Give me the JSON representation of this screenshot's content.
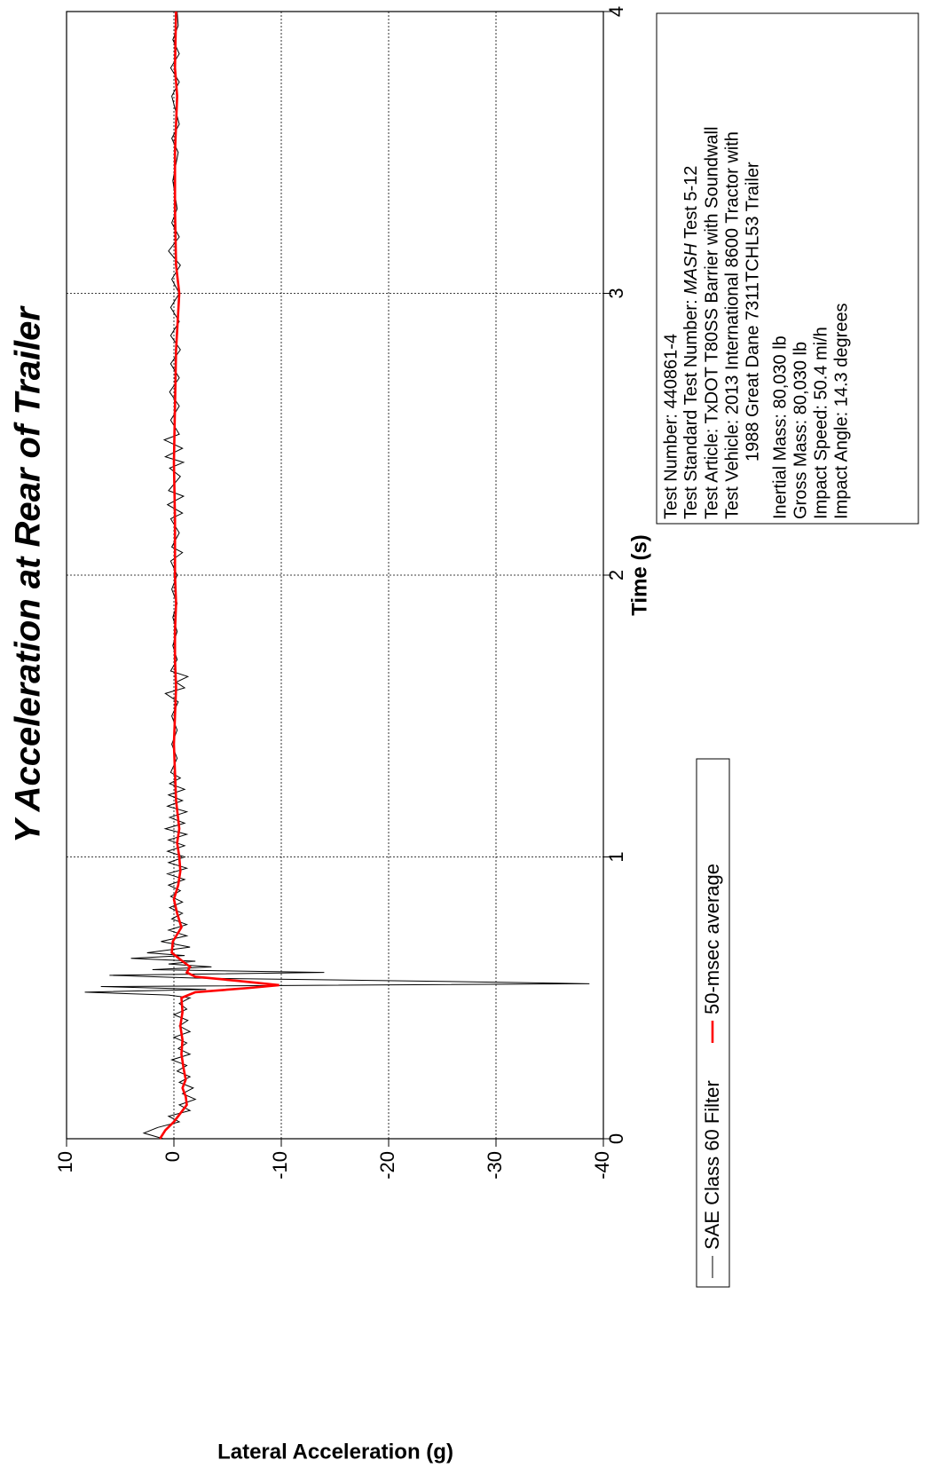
{
  "chart_data": {
    "type": "line",
    "title": "Y Acceleration at Rear of Trailer",
    "x_label": "Time (s)",
    "y_label": "Lateral Acceleration (g)",
    "xlim": [
      0,
      4
    ],
    "xticks": [
      0,
      1,
      2,
      3,
      4
    ],
    "ylim": [
      -40,
      10
    ],
    "yticks": [
      10,
      0,
      -10,
      -20,
      -30,
      -40
    ],
    "grid": true,
    "series": [
      {
        "name": "SAE Class 60 Filter",
        "color": "#000000",
        "x": [
          0,
          0.02,
          0.04,
          0.06,
          0.08,
          0.1,
          0.12,
          0.14,
          0.16,
          0.18,
          0.2,
          0.22,
          0.24,
          0.26,
          0.28,
          0.3,
          0.32,
          0.34,
          0.36,
          0.38,
          0.4,
          0.42,
          0.44,
          0.46,
          0.48,
          0.5,
          0.51,
          0.52,
          0.53,
          0.54,
          0.55,
          0.56,
          0.57,
          0.58,
          0.59,
          0.6,
          0.61,
          0.62,
          0.63,
          0.64,
          0.65,
          0.66,
          0.68,
          0.7,
          0.72,
          0.74,
          0.76,
          0.78,
          0.8,
          0.82,
          0.84,
          0.86,
          0.88,
          0.9,
          0.92,
          0.94,
          0.96,
          0.98,
          1.0,
          1.02,
          1.04,
          1.06,
          1.08,
          1.1,
          1.12,
          1.14,
          1.16,
          1.18,
          1.2,
          1.22,
          1.24,
          1.26,
          1.28,
          1.3,
          1.35,
          1.4,
          1.45,
          1.5,
          1.55,
          1.58,
          1.6,
          1.62,
          1.64,
          1.66,
          1.7,
          1.75,
          1.8,
          1.85,
          1.9,
          1.95,
          2.0,
          2.05,
          2.08,
          2.1,
          2.15,
          2.2,
          2.22,
          2.25,
          2.28,
          2.3,
          2.35,
          2.38,
          2.4,
          2.42,
          2.45,
          2.48,
          2.5,
          2.55,
          2.6,
          2.65,
          2.7,
          2.75,
          2.8,
          2.85,
          2.9,
          2.95,
          3.0,
          3.05,
          3.1,
          3.15,
          3.2,
          3.25,
          3.3,
          3.4,
          3.5,
          3.55,
          3.6,
          3.7,
          3.75,
          3.8,
          3.85,
          3.9,
          3.95,
          4.0
        ],
        "values": [
          1,
          2.8,
          1.5,
          -0.5,
          0.5,
          -1.5,
          -0.5,
          -2,
          -0.8,
          -1.8,
          -0.5,
          -1.5,
          -0.3,
          -1.2,
          0.2,
          -1.5,
          -0.4,
          -1.2,
          0,
          -1.5,
          -0.5,
          -1.3,
          0,
          -1.2,
          -0.5,
          -1.5,
          0.5,
          8.3,
          -3,
          6.8,
          -38.7,
          -22,
          -2,
          6,
          -14,
          2,
          -3.5,
          0.5,
          -2,
          4,
          -1,
          2.5,
          -1.5,
          1.2,
          -1.2,
          0.5,
          -1.2,
          0.2,
          -0.8,
          0.4,
          -0.8,
          0.3,
          -0.6,
          0.5,
          -1,
          0.6,
          -1.2,
          0.5,
          -1,
          0.6,
          -1,
          0.5,
          -1.2,
          0.8,
          -1,
          0.4,
          -1.2,
          0.6,
          -0.8,
          0.5,
          -1,
          0.4,
          -0.6,
          0.3,
          -0.3,
          0.2,
          -0.3,
          0.2,
          -0.4,
          0.8,
          -1,
          -0.2,
          -1.3,
          0.3,
          -0.3,
          0.1,
          -0.3,
          0.1,
          -0.3,
          0.2,
          -0.3,
          0.3,
          -0.8,
          0.2,
          -0.5,
          0.3,
          -0.8,
          0.6,
          -0.9,
          0.5,
          -0.6,
          0.4,
          -0.9,
          0.8,
          -0.8,
          0.9,
          -0.5,
          0.3,
          -0.5,
          0.4,
          -0.5,
          0.3,
          -0.6,
          0.3,
          -0.5,
          0.3,
          -0.5,
          0.2,
          -0.6,
          0.5,
          -0.5,
          0.2,
          -0.3,
          0.1,
          -0.4,
          0.2,
          -0.5,
          0.2,
          -0.5,
          0.3,
          -0.5,
          0.1,
          -0.4,
          -0.3
        ]
      },
      {
        "name": "50-msec average",
        "color": "#ff0000",
        "x": [
          0,
          0.03,
          0.06,
          0.09,
          0.12,
          0.15,
          0.18,
          0.21,
          0.25,
          0.3,
          0.35,
          0.4,
          0.45,
          0.5,
          0.52,
          0.535,
          0.545,
          0.56,
          0.575,
          0.59,
          0.61,
          0.63,
          0.66,
          0.7,
          0.75,
          0.8,
          0.85,
          0.9,
          0.95,
          1.0,
          1.05,
          1.1,
          1.2,
          1.3,
          1.4,
          1.5,
          1.6,
          1.7,
          1.8,
          1.9,
          2.0,
          2.2,
          2.4,
          2.6,
          2.8,
          3.0,
          3.1,
          3.3,
          3.5,
          3.7,
          3.8,
          4.0
        ],
        "values": [
          1.3,
          0.8,
          0,
          -0.6,
          -1.2,
          -1.1,
          -0.8,
          -1.1,
          -0.9,
          -0.7,
          -0.8,
          -0.6,
          -0.8,
          -0.7,
          -2,
          -7,
          -9.8,
          -6,
          -2,
          -1.2,
          -1.5,
          -0.8,
          0.2,
          0.1,
          -0.7,
          -0.3,
          0,
          -0.4,
          -0.6,
          -0.5,
          -0.3,
          -0.5,
          -0.2,
          -0.1,
          0,
          -0.1,
          -0.2,
          -0.1,
          -0.1,
          -0.2,
          -0.1,
          -0.1,
          0,
          -0.1,
          -0.2,
          -0.5,
          -0.2,
          -0.1,
          -0.1,
          -0.3,
          -0.1,
          -0.2
        ]
      }
    ],
    "info_box": [
      "Test Number: 440861-4",
      [
        "Test Standard Test Number: ",
        "MASH",
        " Test 5-12"
      ],
      "Test Article: TxDOT T80SS Barrier with Soundwall",
      "Test Vehicle: 2013 International 8600 Tractor with",
      "1988 Great Dane 7311TCHL53 Trailer",
      "Inertial Mass: 80,030 lb",
      "Gross Mass: 80,030 lb",
      "Impact Speed: 50.4 mi/h",
      "Impact Angle: 14.3 degrees"
    ]
  }
}
